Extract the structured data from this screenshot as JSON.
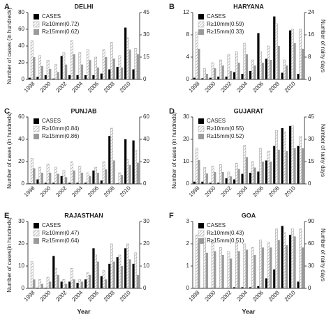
{
  "chart_data": [
    {
      "type": "bar",
      "panel": "A",
      "title": "DELHI",
      "ylabel": "Number of cases (in hundreds)",
      "categories": [
        "1998",
        null,
        "2000",
        null,
        "2002",
        null,
        "2004",
        null,
        "2006",
        null,
        "2008",
        null,
        "2010",
        null
      ],
      "ylim": [
        0,
        80
      ],
      "yticks": [
        0,
        20,
        40,
        60,
        80
      ],
      "y2lim": [
        0,
        45
      ],
      "y2ticks": [
        0,
        15,
        30,
        45
      ],
      "series": [
        {
          "name": "CASES",
          "color": "#000000",
          "values": [
            2,
            3,
            5,
            1,
            28,
            5,
            5,
            5,
            5,
            7,
            12,
            15,
            62,
            12
          ]
        },
        {
          "name": "R≥10mm(0.72)",
          "color": "#9a9a9a",
          "hatch": true,
          "axis": "y2",
          "values": [
            26,
            16,
            13,
            10,
            18,
            26,
            18,
            20,
            15,
            20,
            25,
            16,
            28,
            21
          ]
        },
        {
          "name": "R≥15mm(0.62)",
          "color": "#9a9a9a",
          "axis": "y2",
          "values": [
            15,
            9,
            7,
            5,
            10,
            17,
            10,
            13,
            8,
            15,
            14,
            8,
            20,
            17
          ]
        }
      ]
    },
    {
      "type": "bar",
      "panel": "B",
      "title": "HARYANA",
      "y2label": "Number of rainy days",
      "categories": [
        "1998",
        null,
        "2000",
        null,
        "2002",
        null,
        "2004",
        null,
        "2006",
        null,
        "2008",
        null,
        "2010",
        null
      ],
      "ylim": [
        0,
        12
      ],
      "yticks": [
        0,
        4,
        8,
        12
      ],
      "y2lim": [
        0,
        24
      ],
      "y2ticks": [
        0,
        8,
        16,
        24
      ],
      "series": [
        {
          "name": "CASES",
          "color": "#000000",
          "values": [
            0.3,
            0.2,
            0.3,
            0.5,
            0.5,
            1.3,
            1,
            1.5,
            8.3,
            3.7,
            11.3,
            1.2,
            8.8,
            1
          ]
        },
        {
          "name": "R≥10mm(0.59)",
          "color": "#9a9a9a",
          "hatch": true,
          "axis": "y2",
          "values": [
            17,
            4,
            6,
            7,
            9,
            10,
            13,
            7,
            10,
            12,
            20,
            7,
            18,
            18
          ]
        },
        {
          "name": "R≥15mm(0.33)",
          "color": "#9a9a9a",
          "axis": "y2",
          "values": [
            11,
            2,
            4,
            5,
            3,
            6,
            9,
            5,
            6,
            7,
            12,
            5,
            13,
            11
          ]
        }
      ]
    },
    {
      "type": "bar",
      "panel": "C",
      "title": "PUNJAB",
      "ylabel": "Number of cases (in hundreds)",
      "categories": [
        "1998",
        null,
        "2000",
        null,
        "2002",
        null,
        "2004",
        null,
        "2006",
        null,
        "2008",
        null,
        "2010",
        null
      ],
      "ylim": [
        0,
        60
      ],
      "yticks": [
        0,
        20,
        40,
        60
      ],
      "y2lim": [
        0,
        60
      ],
      "y2ticks": [
        0,
        20,
        40,
        60
      ],
      "series": [
        {
          "name": "CASES",
          "color": "#000000",
          "values": [
            0.5,
            4,
            1,
            1,
            7,
            1,
            1,
            1,
            12,
            3,
            43,
            0.5,
            40,
            39
          ]
        },
        {
          "name": "R≥10mm(0.84)",
          "color": "#9a9a9a",
          "hatch": true,
          "axis": "y2",
          "values": [
            23,
            15,
            18,
            15,
            12,
            20,
            16,
            10,
            15,
            20,
            50,
            10,
            22,
            30
          ]
        },
        {
          "name": "R≥15mm(0.86)",
          "color": "#9a9a9a",
          "axis": "y2",
          "values": [
            14,
            10,
            10,
            9,
            6,
            12,
            10,
            7,
            10,
            13,
            21,
            8,
            17,
            19
          ]
        }
      ]
    },
    {
      "type": "bar",
      "panel": "D",
      "title": "GUJARAT",
      "ylabel": "Number of cases (in hundreds)",
      "y2label": "Number of rainy days",
      "categories": [
        "1998",
        null,
        "2000",
        null,
        "2002",
        null,
        "2004",
        null,
        "2006",
        null,
        "2008",
        null,
        "2010",
        null
      ],
      "ylim": [
        0,
        30
      ],
      "yticks": [
        0,
        10,
        20,
        30
      ],
      "y2lim": [
        0,
        45
      ],
      "y2ticks": [
        0,
        15,
        30,
        45
      ],
      "series": [
        {
          "name": "CASES",
          "color": "#000000",
          "values": [
            1,
            1,
            0.5,
            0.5,
            2.5,
            2,
            4.5,
            5,
            5.5,
            10.5,
            17,
            25,
            26,
            17
          ]
        },
        {
          "name": "R≥10mm(0.55)",
          "color": "#9a9a9a",
          "hatch": true,
          "axis": "y2",
          "values": [
            24,
            11,
            12,
            13,
            8,
            14,
            26,
            15,
            24,
            22,
            36,
            35,
            39,
            32
          ]
        },
        {
          "name": "R≥15mm(0.52)",
          "color": "#9a9a9a",
          "axis": "y2",
          "values": [
            16,
            7,
            8,
            8,
            5,
            10,
            18,
            11,
            15,
            15,
            23,
            22,
            24,
            24
          ]
        }
      ]
    },
    {
      "type": "bar",
      "panel": "E",
      "title": "RAJASTHAN",
      "ylabel": "Number of cases(in hundreds)",
      "xlabel": "Year",
      "categories": [
        "1998",
        null,
        "2000",
        null,
        "2002",
        null,
        "2004",
        null,
        "2006",
        null,
        "2008",
        null,
        "2010",
        null
      ],
      "ylim": [
        0,
        30
      ],
      "yticks": [
        0,
        10,
        20,
        30
      ],
      "y2lim": [
        0,
        30
      ],
      "y2ticks": [
        0,
        10,
        20,
        30
      ],
      "series": [
        {
          "name": "CASES",
          "color": "#000000",
          "values": [
            0.2,
            0.3,
            0.3,
            14.5,
            3,
            3,
            2.5,
            4,
            18,
            5.5,
            11,
            14,
            18,
            11
          ]
        },
        {
          "name": "R≥10mm(0.47)",
          "color": "#9a9a9a",
          "hatch": true,
          "axis": "y2",
          "values": [
            12,
            4,
            5,
            9,
            4,
            9,
            4,
            7,
            15,
            8,
            20,
            15,
            20,
            16
          ]
        },
        {
          "name": "R≥15mm(0.64)",
          "color": "#9a9a9a",
          "axis": "y2",
          "values": [
            4,
            2,
            3,
            6,
            2,
            4,
            3,
            6,
            12,
            4,
            12,
            10,
            13,
            6
          ]
        }
      ]
    },
    {
      "type": "bar",
      "panel": "F",
      "title": "GOA",
      "y2label": "Number of rainy days",
      "xlabel": "Year",
      "categories": [
        "1998",
        null,
        "2000",
        null,
        "2002",
        null,
        "2004",
        null,
        "2006",
        null,
        "2008",
        null,
        "2010",
        null
      ],
      "ylim": [
        0,
        3
      ],
      "yticks": [
        0,
        1,
        2,
        3
      ],
      "y2lim": [
        0,
        90
      ],
      "y2ticks": [
        0,
        30,
        60,
        90
      ],
      "series": [
        {
          "name": "CASES",
          "color": "#000000",
          "values": [
            0.02,
            0.02,
            0.02,
            0.02,
            0.02,
            0.05,
            0.05,
            0.05,
            0.1,
            0.45,
            0.85,
            2.8,
            2.4,
            0.3
          ]
        },
        {
          "name": "R≥10mm(0.43)",
          "color": "#9a9a9a",
          "hatch": true,
          "axis": "y2",
          "values": [
            72,
            68,
            65,
            55,
            50,
            62,
            60,
            55,
            65,
            62,
            80,
            75,
            80,
            80
          ]
        },
        {
          "name": "R≥15mm(0.51)",
          "color": "#9a9a9a",
          "axis": "y2",
          "values": [
            62,
            48,
            50,
            45,
            40,
            50,
            52,
            45,
            55,
            55,
            65,
            58,
            70,
            55
          ]
        }
      ]
    }
  ]
}
